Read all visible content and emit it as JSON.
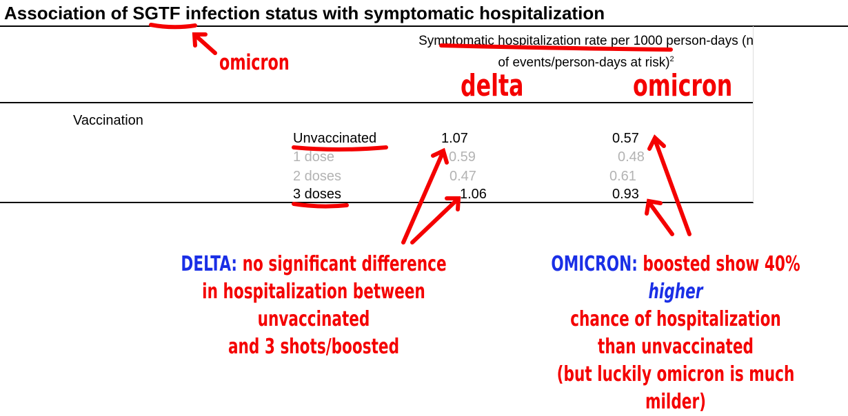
{
  "title": "Association of SGTF infection status with symptomatic hospitalization",
  "table": {
    "column_header": "Symptomatic hospitalization rate per 1000 person-days (n of events/person-days at risk)",
    "column_header_sup": "2",
    "row_group": "Vaccination",
    "rows": [
      {
        "label": "Unvaccinated",
        "delta": "1.07",
        "omicron": "0.57"
      },
      {
        "label": "1 dose",
        "delta": "0.59",
        "omicron": "0.48"
      },
      {
        "label": "2 doses",
        "delta": "0.47",
        "omicron": "0.61"
      },
      {
        "label": "3 doses",
        "delta": "1.06",
        "omicron": "0.93"
      }
    ]
  },
  "annotations": {
    "sgtf_note": "omicron",
    "col_delta": "delta",
    "col_omicron": "omicron",
    "delta_caption": {
      "prefix": "DELTA:",
      "line1": "no significant difference",
      "line2": "in hospitalization between unvaccinated",
      "line3": "and 3 shots/boosted"
    },
    "omicron_caption": {
      "prefix": "OMICRON:",
      "line1_a": "boosted show 40%",
      "line1_b": "higher",
      "line2": "chance of hospitalization",
      "line3": "than unvaccinated",
      "line4": "(but luckily omicron is much milder)"
    }
  },
  "colors": {
    "annotation": "#f40000",
    "caption_prefix": "#1a2fe6",
    "faded_text": "#b3b3b3"
  }
}
